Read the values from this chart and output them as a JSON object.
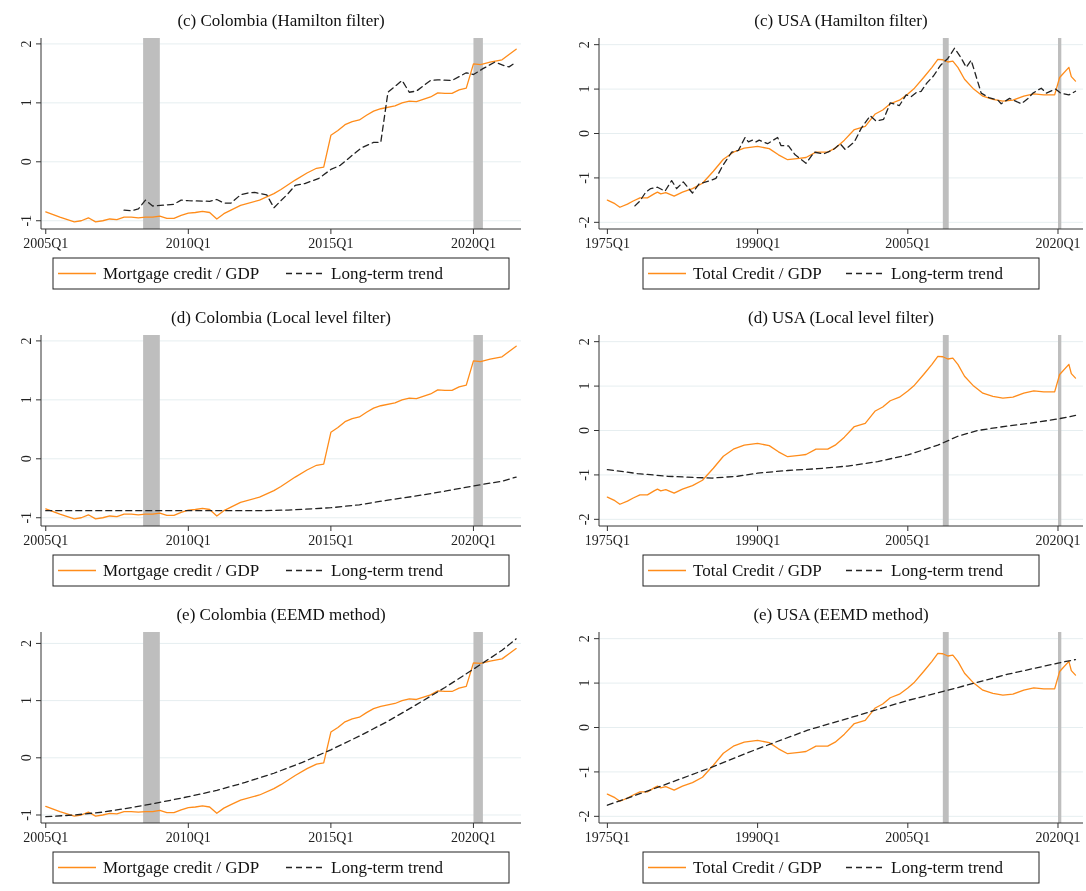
{
  "chart_data": [
    {
      "type": "line",
      "title": "(c)   Colombia (Hamilton filter)",
      "xlim": [
        "2004-11",
        "2021-09"
      ],
      "xticks": [
        {
          "value": "2005-01",
          "label": "2005Q1"
        },
        {
          "value": "2010-01",
          "label": "2010Q1"
        },
        {
          "value": "2015-01",
          "label": "2015Q1"
        },
        {
          "value": "2020-01",
          "label": "2020Q1"
        }
      ],
      "ylim": [
        -1.14,
        2.1
      ],
      "yticks": [
        -1,
        0,
        1,
        2
      ],
      "grid": "y",
      "legend": "bottom",
      "bands": [
        {
          "axis": "x",
          "from": "2008-06",
          "to": "2009-01",
          "color": "#bebebe"
        },
        {
          "axis": "x",
          "from": "2020-01",
          "to": "2020-05",
          "color": "#bebebe"
        }
      ],
      "series": [
        {
          "name": "Mortgage credit / GDP",
          "color": "#ff8c1a",
          "line_style": "solid",
          "x": [
            "2005-01",
            "2005-07",
            "2006-01",
            "2006-04",
            "2006-07",
            "2006-10",
            "2007-01",
            "2007-04",
            "2007-07",
            "2007-10",
            "2008-01",
            "2008-04",
            "2008-07",
            "2008-10",
            "2009-01",
            "2009-04",
            "2009-07",
            "2009-10",
            "2010-01",
            "2010-04",
            "2010-07",
            "2010-10",
            "2011-01",
            "2011-04",
            "2011-07",
            "2011-11",
            "2012-07",
            "2013-01",
            "2013-04",
            "2013-10",
            "2014-03",
            "2014-07",
            "2014-10",
            "2015-01",
            "2015-04",
            "2015-07",
            "2015-10",
            "2016-01",
            "2016-04",
            "2016-07",
            "2016-10",
            "2017-04",
            "2017-07",
            "2017-10",
            "2018-01",
            "2018-07",
            "2018-10",
            "2019-01",
            "2019-04",
            "2019-07",
            "2019-10",
            "2020-01",
            "2020-04",
            "2020-08",
            "2021-01",
            "2021-04",
            "2021-07"
          ],
          "values": [
            -0.85,
            -0.94,
            -1.02,
            -1.0,
            -0.95,
            -1.02,
            -1.0,
            -0.97,
            -0.98,
            -0.94,
            -0.94,
            -0.95,
            -0.94,
            -0.94,
            -0.92,
            -0.96,
            -0.96,
            -0.91,
            -0.87,
            -0.86,
            -0.84,
            -0.86,
            -0.97,
            -0.88,
            -0.82,
            -0.74,
            -0.65,
            -0.54,
            -0.47,
            -0.31,
            -0.19,
            -0.11,
            -0.09,
            0.45,
            0.53,
            0.63,
            0.68,
            0.71,
            0.79,
            0.86,
            0.9,
            0.95,
            1.0,
            1.03,
            1.02,
            1.1,
            1.17,
            1.16,
            1.16,
            1.22,
            1.25,
            1.66,
            1.65,
            1.69,
            1.73,
            1.82,
            1.91
          ]
        },
        {
          "name": "Long-term trend",
          "color": "#222222",
          "line_style": "dashed",
          "x": [
            "2007-10",
            "2008-01",
            "2008-04",
            "2008-07",
            "2008-10",
            "2009-04",
            "2009-07",
            "2009-10",
            "2010-01",
            "2010-10",
            "2011-01",
            "2011-04",
            "2011-07",
            "2011-11",
            "2012-02",
            "2012-05",
            "2012-10",
            "2013-01",
            "2013-04",
            "2013-07",
            "2013-10",
            "2014-02",
            "2014-08",
            "2014-10",
            "2015-01",
            "2015-05",
            "2015-10",
            "2016-02",
            "2016-07",
            "2016-10",
            "2017-01",
            "2017-07",
            "2017-10",
            "2018-01",
            "2018-07",
            "2018-10",
            "2019-04",
            "2019-10",
            "2020-01",
            "2020-05",
            "2020-10",
            "2021-02",
            "2021-04",
            "2021-07"
          ],
          "values": [
            -0.82,
            -0.83,
            -0.8,
            -0.65,
            -0.75,
            -0.73,
            -0.72,
            -0.65,
            -0.66,
            -0.67,
            -0.64,
            -0.7,
            -0.7,
            -0.56,
            -0.53,
            -0.52,
            -0.56,
            -0.78,
            -0.66,
            -0.54,
            -0.4,
            -0.37,
            -0.28,
            -0.22,
            -0.13,
            -0.06,
            0.11,
            0.24,
            0.33,
            0.33,
            1.18,
            1.38,
            1.18,
            1.2,
            1.38,
            1.39,
            1.38,
            1.51,
            1.48,
            1.58,
            1.69,
            1.63,
            1.61,
            1.69
          ]
        }
      ]
    },
    {
      "type": "line",
      "title": "(c)   USA (Hamilton filter)",
      "xlim": [
        "1974-03",
        "2022-07"
      ],
      "xticks": [
        {
          "value": "1975-01",
          "label": "1975Q1"
        },
        {
          "value": "1990-01",
          "label": "1990Q1"
        },
        {
          "value": "2005-01",
          "label": "2005Q1"
        },
        {
          "value": "2020-01",
          "label": "2020Q1"
        }
      ],
      "ylim": [
        -2.15,
        2.15
      ],
      "yticks": [
        -2,
        -1,
        0,
        1,
        2
      ],
      "grid": "y",
      "legend": "bottom",
      "bands": [
        {
          "axis": "x",
          "from": "2008-07",
          "to": "2009-02",
          "color": "#bebebe"
        },
        {
          "axis": "x",
          "from": "2020-01",
          "to": "2020-05",
          "color": "#bebebe"
        }
      ],
      "series": [
        {
          "name": "Total Credit / GDP",
          "color": "#ff8c1a",
          "line_style": "solid",
          "x": [
            "1975-01",
            "1975-10",
            "1976-04",
            "1977-01",
            "1977-08",
            "1978-04",
            "1979-01",
            "1979-09",
            "1980-01",
            "1980-05",
            "1980-11",
            "1981-09",
            "1982-07",
            "1983-07",
            "1984-07",
            "1985-08",
            "1986-08",
            "1987-08",
            "1988-09",
            "1990-01",
            "1991-03",
            "1992-02",
            "1993-01",
            "1994-03",
            "1994-11",
            "1995-11",
            "1997-01",
            "1997-10",
            "1998-09",
            "1999-09",
            "2000-10",
            "2001-10",
            "2002-07",
            "2003-04",
            "2004-03",
            "2005-01",
            "2005-09",
            "2006-08",
            "2007-06",
            "2008-01",
            "2008-07",
            "2009-01",
            "2009-07",
            "2010-01",
            "2010-09",
            "2011-08",
            "2012-07",
            "2013-07",
            "2014-07",
            "2015-07",
            "2016-08",
            "2017-08",
            "2018-08",
            "2019-09",
            "2020-03",
            "2021-02",
            "2021-05",
            "2021-10"
          ],
          "values": [
            -1.5,
            -1.58,
            -1.66,
            -1.59,
            -1.52,
            -1.45,
            -1.45,
            -1.36,
            -1.32,
            -1.36,
            -1.33,
            -1.41,
            -1.32,
            -1.24,
            -1.12,
            -0.85,
            -0.58,
            -0.42,
            -0.33,
            -0.29,
            -0.34,
            -0.48,
            -0.59,
            -0.56,
            -0.54,
            -0.42,
            -0.42,
            -0.33,
            -0.15,
            0.09,
            0.16,
            0.44,
            0.53,
            0.67,
            0.75,
            0.89,
            1.02,
            1.26,
            1.49,
            1.67,
            1.66,
            1.61,
            1.63,
            1.49,
            1.22,
            1.0,
            0.84,
            0.77,
            0.73,
            0.75,
            0.84,
            0.89,
            0.87,
            0.87,
            1.26,
            1.49,
            1.28,
            1.18
          ]
        },
        {
          "name": "Long-term trend",
          "color": "#222222",
          "line_style": "dashed",
          "x": [
            "1977-10",
            "1978-04",
            "1978-11",
            "1979-05",
            "1980-01",
            "1980-10",
            "1981-06",
            "1981-12",
            "1982-08",
            "1983-07",
            "1984-03",
            "1985-03",
            "1985-11",
            "1986-08",
            "1987-06",
            "1988-02",
            "1988-10",
            "1989-02",
            "1989-07",
            "1989-11",
            "1990-03",
            "1991-01",
            "1992-01",
            "1992-05",
            "1993-02",
            "1993-10",
            "1994-11",
            "1995-09",
            "1996-08",
            "1997-08",
            "1998-04",
            "1998-10",
            "1999-09",
            "2000-05",
            "2001-04",
            "2001-11",
            "2002-08",
            "2003-04",
            "2004-03",
            "2004-11",
            "2005-05",
            "2005-11",
            "2006-05",
            "2006-12",
            "2007-08",
            "2008-04",
            "2009-01",
            "2009-09",
            "2010-05",
            "2010-11",
            "2011-05",
            "2012-05",
            "2013-02",
            "2014-01",
            "2014-05",
            "2015-03",
            "2016-05",
            "2017-01",
            "2017-07",
            "2018-05",
            "2018-11",
            "2019-10",
            "2020-04",
            "2021-02",
            "2021-10"
          ],
          "values": [
            -1.63,
            -1.52,
            -1.32,
            -1.24,
            -1.21,
            -1.3,
            -1.06,
            -1.24,
            -1.09,
            -1.34,
            -1.13,
            -1.07,
            -1.01,
            -0.7,
            -0.42,
            -0.38,
            -0.09,
            -0.19,
            -0.15,
            -0.19,
            -0.15,
            -0.23,
            -0.09,
            -0.27,
            -0.28,
            -0.48,
            -0.67,
            -0.42,
            -0.46,
            -0.36,
            -0.23,
            -0.36,
            -0.19,
            0.11,
            0.4,
            0.28,
            0.32,
            0.69,
            0.63,
            0.87,
            0.83,
            0.92,
            0.95,
            1.14,
            1.3,
            1.53,
            1.69,
            1.92,
            1.7,
            1.49,
            1.65,
            0.91,
            0.81,
            0.75,
            0.67,
            0.79,
            0.67,
            0.79,
            0.91,
            1.02,
            0.91,
            1.0,
            0.91,
            0.87,
            0.95
          ]
        }
      ]
    },
    {
      "type": "line",
      "title": "(d)   Colombia (Local level filter)",
      "xlim": [
        "2004-11",
        "2021-09"
      ],
      "xticks": [
        {
          "value": "2005-01",
          "label": "2005Q1"
        },
        {
          "value": "2010-01",
          "label": "2010Q1"
        },
        {
          "value": "2015-01",
          "label": "2015Q1"
        },
        {
          "value": "2020-01",
          "label": "2020Q1"
        }
      ],
      "ylim": [
        -1.14,
        2.1
      ],
      "yticks": [
        -1,
        0,
        1,
        2
      ],
      "grid": "y",
      "legend": "bottom",
      "bands": [
        {
          "axis": "x",
          "from": "2008-06",
          "to": "2009-01",
          "color": "#bebebe"
        },
        {
          "axis": "x",
          "from": "2020-01",
          "to": "2020-05",
          "color": "#bebebe"
        }
      ],
      "series": [
        {
          "name": "Mortgage credit / GDP",
          "color": "#ff8c1a",
          "line_style": "solid",
          "x": [
            "2005-01",
            "2005-07",
            "2006-01",
            "2006-04",
            "2006-07",
            "2006-10",
            "2007-01",
            "2007-04",
            "2007-07",
            "2007-10",
            "2008-01",
            "2008-04",
            "2008-07",
            "2008-10",
            "2009-01",
            "2009-04",
            "2009-07",
            "2009-10",
            "2010-01",
            "2010-04",
            "2010-07",
            "2010-10",
            "2011-01",
            "2011-04",
            "2011-07",
            "2011-11",
            "2012-07",
            "2013-01",
            "2013-04",
            "2013-10",
            "2014-03",
            "2014-07",
            "2014-10",
            "2015-01",
            "2015-04",
            "2015-07",
            "2015-10",
            "2016-01",
            "2016-04",
            "2016-07",
            "2016-10",
            "2017-04",
            "2017-07",
            "2017-10",
            "2018-01",
            "2018-07",
            "2018-10",
            "2019-01",
            "2019-04",
            "2019-07",
            "2019-10",
            "2020-01",
            "2020-04",
            "2020-08",
            "2021-01",
            "2021-04",
            "2021-07"
          ],
          "values": [
            -0.85,
            -0.94,
            -1.02,
            -1.0,
            -0.95,
            -1.02,
            -1.0,
            -0.97,
            -0.98,
            -0.94,
            -0.94,
            -0.95,
            -0.94,
            -0.94,
            -0.92,
            -0.96,
            -0.96,
            -0.91,
            -0.87,
            -0.86,
            -0.84,
            -0.86,
            -0.97,
            -0.88,
            -0.82,
            -0.74,
            -0.65,
            -0.54,
            -0.47,
            -0.31,
            -0.19,
            -0.11,
            -0.09,
            0.45,
            0.53,
            0.63,
            0.68,
            0.71,
            0.79,
            0.86,
            0.9,
            0.95,
            1.0,
            1.03,
            1.02,
            1.1,
            1.17,
            1.16,
            1.16,
            1.22,
            1.25,
            1.66,
            1.65,
            1.69,
            1.73,
            1.82,
            1.91
          ]
        },
        {
          "name": "Long-term trend",
          "color": "#222222",
          "line_style": "dashed",
          "x": [
            "2005-01",
            "2007-01",
            "2009-01",
            "2011-01",
            "2012-07",
            "2013-07",
            "2015-01",
            "2016-01",
            "2017-01",
            "2018-01",
            "2019-01",
            "2020-01",
            "2021-01",
            "2021-07"
          ],
          "values": [
            -0.88,
            -0.88,
            -0.88,
            -0.88,
            -0.88,
            -0.87,
            -0.83,
            -0.78,
            -0.7,
            -0.63,
            -0.55,
            -0.46,
            -0.38,
            -0.31
          ]
        }
      ]
    },
    {
      "type": "line",
      "title": "(d)   USA (Local level filter)",
      "xlim": [
        "1974-03",
        "2022-07"
      ],
      "xticks": [
        {
          "value": "1975-01",
          "label": "1975Q1"
        },
        {
          "value": "1990-01",
          "label": "1990Q1"
        },
        {
          "value": "2005-01",
          "label": "2005Q1"
        },
        {
          "value": "2020-01",
          "label": "2020Q1"
        }
      ],
      "ylim": [
        -2.15,
        2.15
      ],
      "yticks": [
        -2,
        -1,
        0,
        1,
        2
      ],
      "grid": "y",
      "legend": "bottom",
      "bands": [
        {
          "axis": "x",
          "from": "2008-07",
          "to": "2009-02",
          "color": "#bebebe"
        },
        {
          "axis": "x",
          "from": "2020-01",
          "to": "2020-05",
          "color": "#bebebe"
        }
      ],
      "series": [
        {
          "name": "Total Credit / GDP",
          "color": "#ff8c1a",
          "line_style": "solid",
          "x": [
            "1975-01",
            "1975-10",
            "1976-04",
            "1977-01",
            "1977-08",
            "1978-04",
            "1979-01",
            "1979-09",
            "1980-01",
            "1980-05",
            "1980-11",
            "1981-09",
            "1982-07",
            "1983-07",
            "1984-07",
            "1985-08",
            "1986-08",
            "1987-08",
            "1988-09",
            "1990-01",
            "1991-03",
            "1992-02",
            "1993-01",
            "1994-03",
            "1994-11",
            "1995-11",
            "1997-01",
            "1997-10",
            "1998-09",
            "1999-09",
            "2000-10",
            "2001-10",
            "2002-07",
            "2003-04",
            "2004-03",
            "2005-01",
            "2005-09",
            "2006-08",
            "2007-06",
            "2008-01",
            "2008-07",
            "2009-01",
            "2009-07",
            "2010-01",
            "2010-09",
            "2011-08",
            "2012-07",
            "2013-07",
            "2014-07",
            "2015-07",
            "2016-08",
            "2017-08",
            "2018-08",
            "2019-09",
            "2020-03",
            "2021-02",
            "2021-05",
            "2021-10"
          ],
          "values": [
            -1.5,
            -1.58,
            -1.66,
            -1.59,
            -1.52,
            -1.45,
            -1.45,
            -1.36,
            -1.32,
            -1.36,
            -1.33,
            -1.41,
            -1.32,
            -1.24,
            -1.12,
            -0.85,
            -0.58,
            -0.42,
            -0.33,
            -0.29,
            -0.34,
            -0.48,
            -0.59,
            -0.56,
            -0.54,
            -0.42,
            -0.42,
            -0.33,
            -0.15,
            0.09,
            0.16,
            0.44,
            0.53,
            0.67,
            0.75,
            0.89,
            1.02,
            1.26,
            1.49,
            1.67,
            1.66,
            1.61,
            1.63,
            1.49,
            1.22,
            1.0,
            0.84,
            0.77,
            0.73,
            0.75,
            0.84,
            0.89,
            0.87,
            0.87,
            1.26,
            1.49,
            1.28,
            1.18
          ]
        },
        {
          "name": "Long-term trend",
          "color": "#222222",
          "line_style": "dashed",
          "x": [
            "1975-01",
            "1978-01",
            "1981-01",
            "1984-01",
            "1985-07",
            "1988-01",
            "1990-01",
            "1993-01",
            "1996-01",
            "1999-01",
            "2002-01",
            "2005-01",
            "2008-01",
            "2010-01",
            "2012-01",
            "2014-01",
            "2016-01",
            "2018-01",
            "2020-01",
            "2021-10"
          ],
          "values": [
            -0.88,
            -0.97,
            -1.03,
            -1.06,
            -1.07,
            -1.03,
            -0.96,
            -0.9,
            -0.86,
            -0.8,
            -0.7,
            -0.55,
            -0.33,
            -0.13,
            0.0,
            0.07,
            0.13,
            0.19,
            0.26,
            0.34
          ]
        }
      ]
    },
    {
      "type": "line",
      "title": "(e)   Colombia (EEMD method)",
      "xlim": [
        "2004-11",
        "2021-09"
      ],
      "xticks": [
        {
          "value": "2005-01",
          "label": "2005Q1"
        },
        {
          "value": "2010-01",
          "label": "2010Q1"
        },
        {
          "value": "2015-01",
          "label": "2015Q1"
        },
        {
          "value": "2020-01",
          "label": "2020Q1"
        }
      ],
      "ylim": [
        -1.14,
        2.2
      ],
      "yticks": [
        -1,
        0,
        1,
        2
      ],
      "grid": "y",
      "legend": "bottom",
      "bands": [
        {
          "axis": "x",
          "from": "2008-06",
          "to": "2009-01",
          "color": "#bebebe"
        },
        {
          "axis": "x",
          "from": "2020-01",
          "to": "2020-05",
          "color": "#bebebe"
        }
      ],
      "series": [
        {
          "name": "Mortgage credit / GDP",
          "color": "#ff8c1a",
          "line_style": "solid",
          "x": [
            "2005-01",
            "2005-07",
            "2006-01",
            "2006-04",
            "2006-07",
            "2006-10",
            "2007-01",
            "2007-04",
            "2007-07",
            "2007-10",
            "2008-01",
            "2008-04",
            "2008-07",
            "2008-10",
            "2009-01",
            "2009-04",
            "2009-07",
            "2009-10",
            "2010-01",
            "2010-04",
            "2010-07",
            "2010-10",
            "2011-01",
            "2011-04",
            "2011-07",
            "2011-11",
            "2012-07",
            "2013-01",
            "2013-04",
            "2013-10",
            "2014-03",
            "2014-07",
            "2014-10",
            "2015-01",
            "2015-04",
            "2015-07",
            "2015-10",
            "2016-01",
            "2016-04",
            "2016-07",
            "2016-10",
            "2017-04",
            "2017-07",
            "2017-10",
            "2018-01",
            "2018-07",
            "2018-10",
            "2019-01",
            "2019-04",
            "2019-07",
            "2019-10",
            "2020-01",
            "2020-04",
            "2020-08",
            "2021-01",
            "2021-04",
            "2021-07"
          ],
          "values": [
            -0.85,
            -0.94,
            -1.02,
            -1.0,
            -0.95,
            -1.02,
            -1.0,
            -0.97,
            -0.98,
            -0.94,
            -0.94,
            -0.95,
            -0.94,
            -0.94,
            -0.92,
            -0.96,
            -0.96,
            -0.91,
            -0.87,
            -0.86,
            -0.84,
            -0.86,
            -0.97,
            -0.88,
            -0.82,
            -0.74,
            -0.65,
            -0.54,
            -0.47,
            -0.31,
            -0.19,
            -0.11,
            -0.09,
            0.45,
            0.53,
            0.63,
            0.68,
            0.71,
            0.79,
            0.86,
            0.9,
            0.95,
            1.0,
            1.03,
            1.02,
            1.1,
            1.17,
            1.16,
            1.16,
            1.22,
            1.25,
            1.66,
            1.65,
            1.69,
            1.73,
            1.82,
            1.91
          ]
        },
        {
          "name": "Long-term trend",
          "color": "#222222",
          "line_style": "dashed",
          "x": [
            "2005-01",
            "2006-01",
            "2007-01",
            "2008-01",
            "2009-01",
            "2010-01",
            "2011-01",
            "2012-01",
            "2013-01",
            "2014-01",
            "2015-01",
            "2016-01",
            "2017-01",
            "2018-01",
            "2019-01",
            "2020-01",
            "2021-01",
            "2021-07"
          ],
          "values": [
            -1.03,
            -1.0,
            -0.95,
            -0.87,
            -0.78,
            -0.68,
            -0.57,
            -0.43,
            -0.27,
            -0.08,
            0.14,
            0.38,
            0.64,
            0.93,
            1.23,
            1.55,
            1.88,
            2.08
          ]
        }
      ]
    },
    {
      "type": "line",
      "title": "(e)   USA (EEMD method)",
      "xlim": [
        "1974-03",
        "2022-07"
      ],
      "xticks": [
        {
          "value": "1975-01",
          "label": "1975Q1"
        },
        {
          "value": "1990-01",
          "label": "1990Q1"
        },
        {
          "value": "2005-01",
          "label": "2005Q1"
        },
        {
          "value": "2020-01",
          "label": "2020Q1"
        }
      ],
      "ylim": [
        -2.15,
        2.15
      ],
      "yticks": [
        -2,
        -1,
        0,
        1,
        2
      ],
      "grid": "y",
      "legend": "bottom",
      "bands": [
        {
          "axis": "x",
          "from": "2008-07",
          "to": "2009-02",
          "color": "#bebebe"
        },
        {
          "axis": "x",
          "from": "2020-01",
          "to": "2020-05",
          "color": "#bebebe"
        }
      ],
      "series": [
        {
          "name": "Total Credit / GDP",
          "color": "#ff8c1a",
          "line_style": "solid",
          "x": [
            "1975-01",
            "1975-10",
            "1976-04",
            "1977-01",
            "1977-08",
            "1978-04",
            "1979-01",
            "1979-09",
            "1980-01",
            "1980-05",
            "1980-11",
            "1981-09",
            "1982-07",
            "1983-07",
            "1984-07",
            "1985-08",
            "1986-08",
            "1987-08",
            "1988-09",
            "1990-01",
            "1991-03",
            "1992-02",
            "1993-01",
            "1994-03",
            "1994-11",
            "1995-11",
            "1997-01",
            "1997-10",
            "1998-09",
            "1999-09",
            "2000-10",
            "2001-10",
            "2002-07",
            "2003-04",
            "2004-03",
            "2005-01",
            "2005-09",
            "2006-08",
            "2007-06",
            "2008-01",
            "2008-07",
            "2009-01",
            "2009-07",
            "2010-01",
            "2010-09",
            "2011-08",
            "2012-07",
            "2013-07",
            "2014-07",
            "2015-07",
            "2016-08",
            "2017-08",
            "2018-08",
            "2019-09",
            "2020-03",
            "2021-02",
            "2021-05",
            "2021-10"
          ],
          "values": [
            -1.5,
            -1.58,
            -1.66,
            -1.59,
            -1.52,
            -1.45,
            -1.45,
            -1.36,
            -1.32,
            -1.36,
            -1.33,
            -1.41,
            -1.32,
            -1.24,
            -1.12,
            -0.85,
            -0.58,
            -0.42,
            -0.33,
            -0.29,
            -0.34,
            -0.48,
            -0.59,
            -0.56,
            -0.54,
            -0.42,
            -0.42,
            -0.33,
            -0.15,
            0.09,
            0.16,
            0.44,
            0.53,
            0.67,
            0.75,
            0.89,
            1.02,
            1.26,
            1.49,
            1.67,
            1.66,
            1.61,
            1.63,
            1.49,
            1.22,
            1.0,
            0.84,
            0.77,
            0.73,
            0.75,
            0.84,
            0.89,
            0.87,
            0.87,
            1.26,
            1.49,
            1.28,
            1.18
          ]
        },
        {
          "name": "Long-term trend",
          "color": "#222222",
          "line_style": "dashed",
          "x": [
            "1975-01",
            "1980-01",
            "1985-01",
            "1990-01",
            "1995-01",
            "2000-01",
            "2005-01",
            "2010-01",
            "2015-01",
            "2020-01",
            "2021-10"
          ],
          "values": [
            -1.75,
            -1.35,
            -0.93,
            -0.48,
            -0.06,
            0.27,
            0.61,
            0.9,
            1.2,
            1.45,
            1.53
          ]
        }
      ]
    }
  ]
}
